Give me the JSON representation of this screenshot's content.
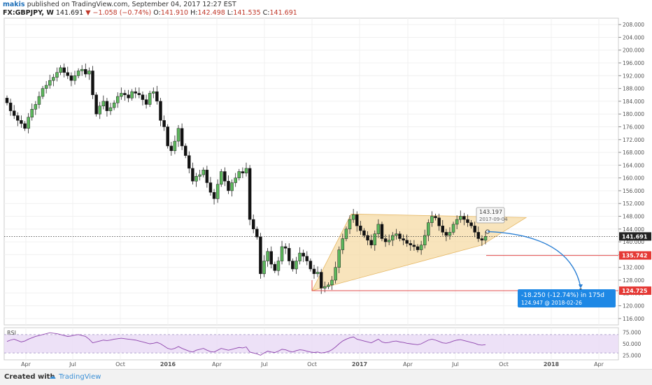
{
  "header": {
    "author": "makis",
    "published_text": "published on TradingView.com, September 04, 2017 12:27 EST",
    "symbol": "FX:GBPJPY, W",
    "last": "141.691",
    "change": "−1.058 (−0.74%)",
    "open_label": "O:",
    "open": "141.910",
    "high_label": "H:",
    "high": "142.498",
    "low_label": "L:",
    "low": "141.535",
    "close_label": "C:",
    "close": "141.691"
  },
  "footer": {
    "created_with": "Created with",
    "brand": "TradingView"
  },
  "colors": {
    "up": "#5cb85c",
    "down": "#111111",
    "triangle": "#f5d9a0",
    "support_line": "#e24b4b",
    "arrow": "#2a7fd4",
    "rsi_line": "#8e44ad",
    "rsi_band": "#e8daf5",
    "label_blue": "#1e88e5",
    "label_red": "#e53935"
  },
  "chart_data": {
    "type": "candlestick",
    "instrument": "FX:GBPJPY",
    "timeframe": "W",
    "x_ticks": [
      "Apr",
      "Jul",
      "Oct",
      "2016",
      "Apr",
      "Jul",
      "Oct",
      "2017",
      "Apr",
      "Jul",
      "Oct",
      "2018",
      "Apr"
    ],
    "y_ticks": [
      "208.000",
      "204.000",
      "200.000",
      "196.000",
      "192.000",
      "188.000",
      "184.000",
      "180.000",
      "176.000",
      "172.000",
      "168.000",
      "164.000",
      "160.000",
      "156.000",
      "152.000",
      "148.000",
      "144.000",
      "140.000",
      "136.000",
      "132.000",
      "128.000",
      "124.000",
      "120.000",
      "116.000"
    ],
    "ylim": [
      114,
      210
    ],
    "last_price_label": "141.691",
    "level_labels": [
      "135.742",
      "124.725"
    ],
    "projection": {
      "change": "-18.250 (-12.74%) in 175d",
      "target": "124.947 @ 2018-02-26"
    },
    "start_point": {
      "price": "143.197",
      "date": "2017-09-04"
    },
    "closes": [
      183.5,
      181,
      179.5,
      178,
      177,
      175.5,
      179,
      181.5,
      183,
      185.5,
      188,
      189,
      190.5,
      191.5,
      193,
      194.5,
      193,
      192,
      190.5,
      192,
      193.5,
      194,
      192.5,
      193.5,
      186,
      180,
      182.5,
      184,
      181,
      182,
      183.5,
      185.5,
      186.5,
      186,
      185,
      187,
      186.5,
      186,
      184.5,
      183,
      186.5,
      187,
      184,
      178,
      176,
      170,
      168.5,
      171.5,
      175.5,
      170,
      167,
      163,
      159,
      160.5,
      161,
      162.5,
      158.5,
      155.5,
      153.5,
      158,
      162,
      159,
      156,
      158.5,
      160,
      162,
      161.5,
      163,
      147,
      144,
      141.5,
      130,
      134,
      137,
      133,
      131,
      134,
      138.5,
      138,
      134,
      131.5,
      134,
      136.5,
      135.5,
      134,
      131.5,
      130,
      130.5,
      125.5,
      126,
      126.5,
      128,
      132,
      137.5,
      141,
      144,
      147,
      148.5,
      145,
      143.5,
      142,
      140.5,
      139,
      142.5,
      145.5,
      141,
      140,
      140.5,
      142,
      142.5,
      141,
      140.5,
      139.5,
      139,
      138.5,
      137.5,
      139,
      142,
      146,
      148,
      147.5,
      145,
      143,
      142,
      143,
      145.5,
      147,
      148,
      147,
      146,
      145,
      143,
      141,
      140.5,
      141.7
    ],
    "rsi": {
      "label": "RSI",
      "ticks": [
        "75.000",
        "50.000",
        "25.000"
      ],
      "band": [
        30,
        70
      ],
      "values": [
        55,
        58,
        60,
        57,
        54,
        56,
        60,
        63,
        66,
        68,
        70,
        72,
        74,
        73,
        72,
        70,
        68,
        66,
        67,
        69,
        70,
        68,
        66,
        60,
        52,
        54,
        56,
        58,
        57,
        58,
        60,
        61,
        62,
        61,
        60,
        59,
        58,
        56,
        54,
        52,
        50,
        51,
        53,
        50,
        45,
        40,
        38,
        40,
        44,
        40,
        37,
        34,
        32,
        36,
        38,
        40,
        36,
        33,
        32,
        36,
        40,
        38,
        36,
        38,
        40,
        42,
        41,
        43,
        32,
        30,
        28,
        25,
        30,
        34,
        32,
        31,
        34,
        38,
        37,
        34,
        32,
        35,
        37,
        36,
        34,
        32,
        31,
        32,
        30,
        31,
        33,
        37,
        43,
        50,
        56,
        60,
        63,
        65,
        60,
        58,
        56,
        54,
        52,
        56,
        60,
        54,
        52,
        53,
        55,
        56,
        54,
        53,
        51,
        50,
        49,
        48,
        50,
        54,
        58,
        60,
        58,
        55,
        52,
        51,
        53,
        56,
        58,
        59,
        57,
        55,
        53,
        51,
        48,
        47,
        48
      ]
    }
  }
}
